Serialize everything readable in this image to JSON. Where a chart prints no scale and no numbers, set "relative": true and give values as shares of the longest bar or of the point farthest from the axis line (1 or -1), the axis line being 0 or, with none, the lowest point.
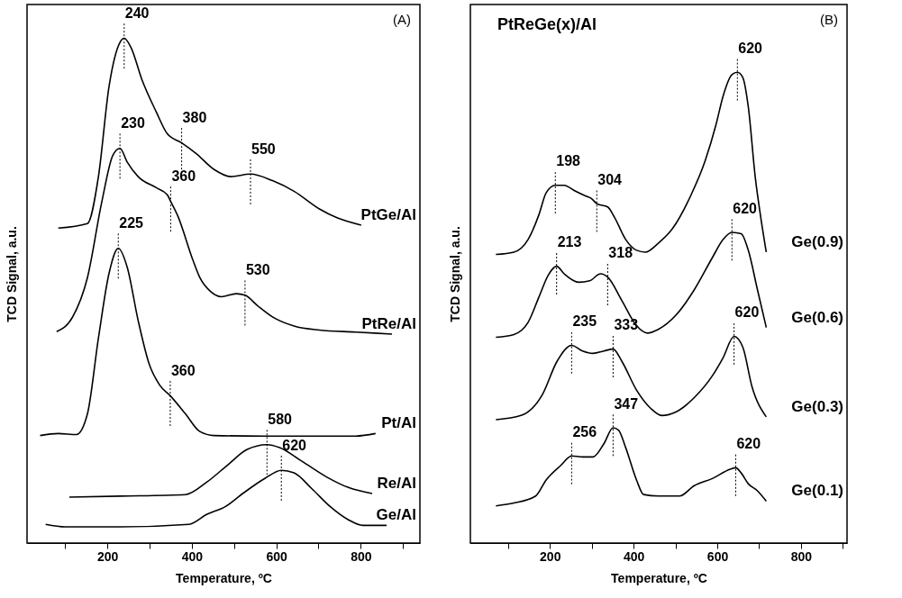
{
  "chart_data": [
    {
      "type": "line",
      "relative": true,
      "xlabel": "Temperature, ºC",
      "ylabel": "TCD Signal, a.u.",
      "xlim": [
        10,
        940
      ],
      "xticks": [
        {
          "value": 100,
          "label": null
        },
        200,
        {
          "value": 300,
          "label": null
        },
        400,
        {
          "value": 500,
          "label": null
        },
        600,
        {
          "value": 700,
          "label": null
        },
        800,
        {
          "value": 900,
          "label": null
        }
      ],
      "series": [
        {
          "name": "PtGe/Al",
          "color": "#000000",
          "x": [
            84,
            153,
            179,
            204,
            230,
            240,
            256,
            282,
            316,
            342,
            376,
            410,
            453,
            492,
            539,
            591,
            642,
            702,
            745,
            801
          ],
          "values": [
            0.624,
            0.633,
            0.726,
            0.904,
            0.992,
            1,
            0.982,
            0.918,
            0.854,
            0.811,
            0.793,
            0.772,
            0.74,
            0.726,
            0.731,
            0.718,
            0.697,
            0.662,
            0.644,
            0.63
          ]
        },
        {
          "name": "PtRe/Al",
          "color": "#000000",
          "x": [
            80,
            118,
            153,
            187,
            213,
            230,
            247,
            273,
            316,
            342,
            350,
            367,
            402,
            419,
            445,
            470,
            505,
            526,
            556,
            591,
            642,
            702,
            788,
            874
          ],
          "values": [
            0.419,
            0.448,
            0.526,
            0.676,
            0.768,
            0.782,
            0.755,
            0.726,
            0.704,
            0.69,
            0.677,
            0.648,
            0.562,
            0.526,
            0.498,
            0.488,
            0.494,
            0.491,
            0.47,
            0.448,
            0.43,
            0.422,
            0.418,
            0.414
          ]
        },
        {
          "name": "Pt/Al",
          "color": "#000000",
          "x": [
            41,
            84,
            127,
            153,
            179,
            204,
            226,
            247,
            273,
            299,
            324,
            349,
            385,
            419,
            453,
            573,
            659,
            788,
            835
          ],
          "values": [
            0.213,
            0.217,
            0.215,
            0.256,
            0.406,
            0.534,
            0.584,
            0.547,
            0.441,
            0.355,
            0.313,
            0.292,
            0.256,
            0.221,
            0.213,
            0.212,
            0.212,
            0.212,
            0.217
          ]
        },
        {
          "name": "Re/Al",
          "color": "#000000",
          "x": [
            110,
            230,
            385,
            436,
            488,
            530,
            578,
            608,
            659,
            719,
            771,
            827
          ],
          "values": [
            0.091,
            0.093,
            0.096,
            0.121,
            0.157,
            0.185,
            0.195,
            0.189,
            0.163,
            0.131,
            0.11,
            0.098
          ]
        },
        {
          "name": "Ge/Al",
          "color": "#000000",
          "x": [
            54,
            101,
            230,
            393,
            436,
            479,
            522,
            573,
            612,
            642,
            685,
            728,
            771,
            805,
            861
          ],
          "values": [
            0.037,
            0.032,
            0.032,
            0.037,
            0.057,
            0.072,
            0.099,
            0.128,
            0.144,
            0.139,
            0.107,
            0.072,
            0.046,
            0.035,
            0.035
          ]
        }
      ],
      "annotations": [
        "(A)",
        {
          "text": "240",
          "x": 240,
          "y": 1
        },
        {
          "text": "230",
          "x": 230,
          "y": 0.782
        },
        {
          "text": "380",
          "x": 376,
          "y": 0.793
        },
        {
          "text": "360",
          "x": 350,
          "y": 0.677
        },
        {
          "text": "550",
          "x": 539,
          "y": 0.731
        },
        {
          "text": "225",
          "x": 226,
          "y": 0.584
        },
        {
          "text": "530",
          "x": 526,
          "y": 0.491
        },
        {
          "text": "360",
          "x": 349,
          "y": 0.292
        },
        {
          "text": "580",
          "x": 578,
          "y": 0.195
        },
        {
          "text": "620",
          "x": 612,
          "y": 0.144
        }
      ]
    },
    {
      "type": "line",
      "relative": true,
      "xlabel": "Temperature, ºC",
      "ylabel": "TCD Signal, a.u.",
      "xlim": [
        10,
        910
      ],
      "xticks": [
        {
          "value": 100,
          "label": null
        },
        200,
        {
          "value": 300,
          "label": null
        },
        400,
        {
          "value": 500,
          "label": null
        },
        600,
        {
          "value": 700,
          "label": null
        },
        800,
        {
          "value": 900,
          "label": null
        }
      ],
      "series": [
        {
          "name": "Ge(0.9)",
          "color": "#000000",
          "x": [
            71,
            114,
            148,
            174,
            191,
            213,
            234,
            260,
            286,
            299,
            312,
            338,
            355,
            381,
            407,
            428,
            459,
            493,
            536,
            571,
            597,
            614,
            635,
            648,
            661,
            674,
            691,
            704,
            717
          ],
          "values": [
            0.613,
            0.618,
            0.645,
            0.698,
            0.744,
            0.76,
            0.76,
            0.748,
            0.737,
            0.732,
            0.721,
            0.714,
            0.691,
            0.645,
            0.622,
            0.618,
            0.637,
            0.668,
            0.737,
            0.812,
            0.889,
            0.95,
            0.995,
            1,
            0.989,
            0.927,
            0.775,
            0.691,
            0.618
          ]
        },
        {
          "name": "Ge(0.6)",
          "color": "#000000",
          "x": [
            71,
            114,
            148,
            174,
            196,
            216,
            234,
            269,
            295,
            321,
            338,
            372,
            407,
            433,
            459,
            502,
            545,
            588,
            614,
            635,
            657,
            674,
            696,
            717
          ],
          "values": [
            0.437,
            0.443,
            0.469,
            0.523,
            0.569,
            0.588,
            0.572,
            0.554,
            0.557,
            0.572,
            0.565,
            0.515,
            0.462,
            0.446,
            0.454,
            0.485,
            0.538,
            0.606,
            0.645,
            0.66,
            0.657,
            0.622,
            0.538,
            0.458
          ]
        },
        {
          "name": "Ge(0.3)",
          "color": "#000000",
          "x": [
            71,
            131,
            183,
            217,
            252,
            278,
            303,
            329,
            351,
            372,
            407,
            441,
            467,
            502,
            545,
            588,
            614,
            640,
            661,
            683,
            717
          ],
          "values": [
            0.262,
            0.271,
            0.317,
            0.386,
            0.42,
            0.408,
            0.403,
            0.408,
            0.412,
            0.386,
            0.325,
            0.286,
            0.271,
            0.279,
            0.309,
            0.355,
            0.394,
            0.439,
            0.416,
            0.332,
            0.268
          ]
        },
        {
          "name": "Ge(0.1)",
          "color": "#000000",
          "x": [
            71,
            114,
            166,
            191,
            226,
            252,
            278,
            303,
            329,
            351,
            364,
            381,
            407,
            424,
            459,
            510,
            545,
            588,
            631,
            644,
            657,
            674,
            696,
            717
          ],
          "values": [
            0.079,
            0.085,
            0.1,
            0.134,
            0.165,
            0.185,
            0.183,
            0.183,
            0.211,
            0.245,
            0.24,
            0.203,
            0.134,
            0.103,
            0.1,
            0.1,
            0.122,
            0.137,
            0.157,
            0.16,
            0.149,
            0.126,
            0.111,
            0.089
          ]
        }
      ],
      "annotations": [
        "PtReGe(x)/Al",
        "(B)",
        {
          "text": "620",
          "x": 648,
          "y": 1
        },
        {
          "text": "198",
          "x": 213,
          "y": 0.76
        },
        {
          "text": "304",
          "x": 312,
          "y": 0.721
        },
        {
          "text": "620",
          "x": 635,
          "y": 0.66
        },
        {
          "text": "213",
          "x": 216,
          "y": 0.588
        },
        {
          "text": "318",
          "x": 338,
          "y": 0.565
        },
        {
          "text": "620",
          "x": 640,
          "y": 0.439
        },
        {
          "text": "235",
          "x": 252,
          "y": 0.42
        },
        {
          "text": "333",
          "x": 351,
          "y": 0.412
        },
        {
          "text": "256",
          "x": 252,
          "y": 0.185
        },
        {
          "text": "347",
          "x": 351,
          "y": 0.245
        },
        {
          "text": "620",
          "x": 644,
          "y": 0.16
        }
      ]
    }
  ]
}
